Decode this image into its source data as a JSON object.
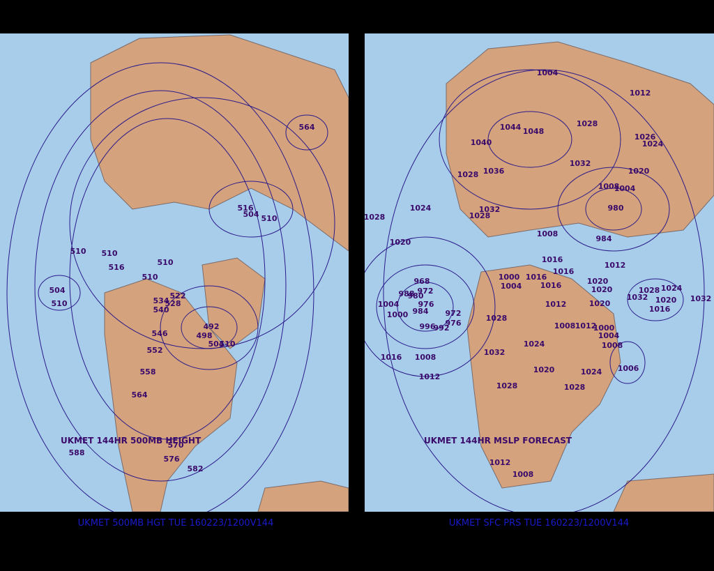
{
  "left_panel": {
    "caption": "UKMET 144HR 500MB HEIGHT",
    "footer": "UKMET 500MB HGT TUE 160223/1200V144",
    "contour_labels": [
      "564",
      "516",
      "504",
      "510",
      "510",
      "510",
      "516",
      "510",
      "510",
      "504",
      "510",
      "522",
      "534",
      "528",
      "540",
      "492",
      "498",
      "504",
      "510",
      "546",
      "552",
      "558",
      "564",
      "588",
      "570",
      "576",
      "582"
    ]
  },
  "right_panel": {
    "caption": "UKMET 144HR MSLP FORECAST",
    "footer": "UKMET SFC PRS TUE 160223/1200V144",
    "contour_labels": [
      "1004",
      "1012",
      "1044",
      "1048",
      "1028",
      "1040",
      "1026",
      "1024",
      "1036",
      "1028",
      "1032",
      "1020",
      "1008",
      "1004",
      "1024",
      "1032",
      "1028",
      "1028",
      "980",
      "984",
      "1020",
      "1008",
      "1016",
      "1016",
      "1012",
      "968",
      "972",
      "988",
      "980",
      "976",
      "1004",
      "984",
      "972",
      "1000",
      "976",
      "996",
      "992",
      "1000",
      "1004",
      "1016",
      "1016",
      "1012",
      "1020",
      "1020",
      "1028",
      "1024",
      "1032",
      "1020",
      "1016",
      "1032",
      "1020",
      "1028",
      "1008",
      "1012",
      "1000",
      "1004",
      "1008",
      "1016",
      "1008",
      "1032",
      "1024",
      "1012",
      "1020",
      "1024",
      "1006",
      "1028",
      "1028",
      "1012",
      "1008"
    ]
  }
}
